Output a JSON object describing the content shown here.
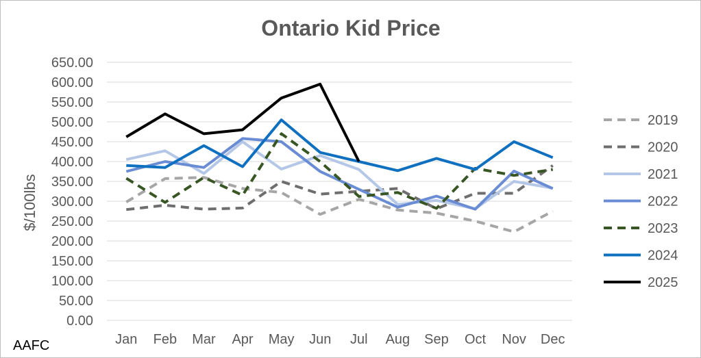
{
  "chart_data": {
    "type": "line",
    "title": "Ontario Kid Price",
    "ylabel": "$/100lbs",
    "xlabel": "",
    "ylim": [
      0,
      650
    ],
    "yticks": [
      "0.00",
      "50.00",
      "100.00",
      "150.00",
      "200.00",
      "250.00",
      "300.00",
      "350.00",
      "400.00",
      "450.00",
      "500.00",
      "550.00",
      "600.00",
      "650.00"
    ],
    "categories": [
      "Jan",
      "Feb",
      "Mar",
      "Apr",
      "May",
      "Jun",
      "Jul",
      "Aug",
      "Sep",
      "Oct",
      "Nov",
      "Dec"
    ],
    "grid": "horizontal",
    "legend_position": "right",
    "series": [
      {
        "name": "2019",
        "color": "#a6a6a6",
        "dash": "dashed",
        "values": [
          298,
          357,
          360,
          332,
          322,
          267,
          305,
          278,
          270,
          250,
          223,
          275
        ]
      },
      {
        "name": "2020",
        "color": "#6e6e6e",
        "dash": "dashed",
        "values": [
          279,
          290,
          280,
          283,
          350,
          318,
          325,
          332,
          281,
          320,
          320,
          390
        ]
      },
      {
        "name": "2021",
        "color": "#b4c7e7",
        "dash": "solid",
        "values": [
          405,
          427,
          370,
          450,
          381,
          415,
          380,
          292,
          302,
          281,
          350,
          333
        ]
      },
      {
        "name": "2022",
        "color": "#6a8cd4",
        "dash": "solid",
        "values": [
          375,
          400,
          385,
          458,
          450,
          375,
          330,
          285,
          313,
          280,
          376,
          332
        ]
      },
      {
        "name": "2023",
        "color": "#375623",
        "dash": "dashed",
        "values": [
          358,
          297,
          360,
          315,
          470,
          400,
          312,
          322,
          282,
          383,
          365,
          380
        ]
      },
      {
        "name": "2024",
        "color": "#0f70c0",
        "dash": "solid",
        "values": [
          390,
          385,
          440,
          387,
          505,
          423,
          400,
          377,
          408,
          380,
          450,
          410
        ]
      },
      {
        "name": "2025",
        "color": "#000000",
        "dash": "solid",
        "values": [
          462,
          520,
          470,
          480,
          560,
          595,
          400,
          null,
          null,
          null,
          null,
          null
        ]
      }
    ]
  },
  "source": "AAFC"
}
